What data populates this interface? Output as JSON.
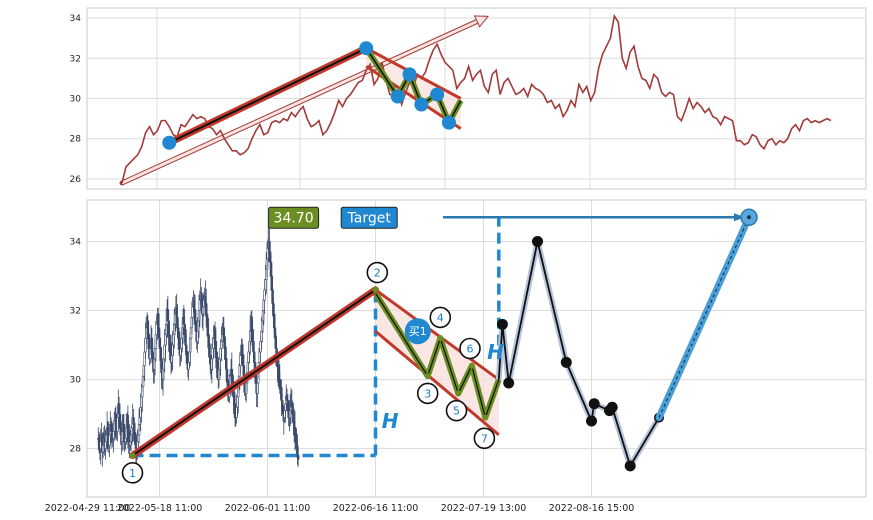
{
  "chart_data": [
    {
      "panel": "top",
      "type": "line",
      "ylim": [
        25.5,
        34.5
      ],
      "yticks": [
        26,
        28,
        30,
        32,
        34
      ],
      "grid": true,
      "price_series": [
        25.8,
        26.6,
        26.8,
        27.0,
        27.2,
        27.6,
        28.3,
        28.6,
        28.2,
        28.4,
        28.9,
        28.9,
        28.6,
        28.2,
        28.1,
        28.7,
        28.6,
        28.9,
        29.2,
        29.0,
        29.1,
        29.0,
        28.6,
        28.5,
        28.2,
        28.4,
        28.0,
        27.7,
        27.4,
        27.4,
        27.2,
        27.3,
        27.5,
        28.0,
        28.4,
        28.7,
        28.2,
        28.3,
        28.8,
        28.9,
        28.8,
        29.0,
        28.9,
        29.3,
        29.1,
        29.4,
        29.6,
        29.0,
        28.6,
        28.7,
        28.9,
        28.2,
        28.4,
        28.8,
        29.3,
        29.9,
        29.6,
        30.0,
        30.2,
        30.5,
        30.8,
        30.9,
        31.4,
        31.7,
        30.7,
        31.0,
        31.8,
        30.9,
        30.2,
        30.2,
        30.4,
        29.7,
        30.3,
        30.8,
        30.6,
        31.2,
        31.0,
        31.3,
        31.9,
        32.4,
        32.7,
        32.2,
        31.8,
        31.6,
        31.4,
        30.5,
        30.8,
        31.0,
        31.6,
        30.9,
        31.2,
        31.4,
        30.6,
        30.3,
        31.2,
        31.4,
        30.2,
        30.8,
        31.0,
        30.6,
        30.2,
        30.3,
        30.5,
        30.1,
        30.7,
        30.5,
        30.4,
        30.2,
        29.8,
        29.9,
        29.5,
        29.7,
        29.1,
        29.4,
        29.9,
        29.6,
        30.7,
        30.3,
        30.6,
        29.9,
        30.3,
        31.5,
        32.2,
        32.6,
        33.0,
        34.1,
        33.8,
        32.0,
        31.5,
        32.3,
        32.6,
        31.6,
        31.0,
        30.9,
        30.5,
        31.2,
        31.0,
        30.3,
        30.1,
        30.3,
        30.2,
        29.1,
        28.9,
        29.4,
        30.0,
        29.5,
        29.8,
        29.6,
        29.3,
        29.5,
        29.1,
        29.0,
        28.7,
        29.1,
        29.0,
        28.9,
        27.9,
        27.9,
        27.7,
        27.8,
        28.2,
        28.1,
        27.7,
        27.5,
        27.9,
        28.0,
        27.7,
        27.9,
        27.8,
        28.0,
        28.5,
        28.7,
        28.4,
        28.9,
        29.0,
        28.8,
        28.9,
        28.8,
        28.9,
        29.0,
        28.9
      ],
      "trend_line": {
        "from": [
          12,
          27.8
        ],
        "to": [
          62,
          32.5
        ]
      },
      "wedge_upper": {
        "from": [
          62,
          32.5
        ],
        "to": [
          86,
          30.0
        ]
      },
      "wedge_lower": {
        "from": [
          62,
          31.6
        ],
        "to": [
          86,
          28.5
        ]
      },
      "zigzag": [
        [
          62,
          32.5
        ],
        [
          70,
          30.1
        ],
        [
          73,
          31.2
        ],
        [
          76,
          29.7
        ],
        [
          80,
          30.2
        ],
        [
          83,
          28.8
        ],
        [
          86,
          29.9
        ]
      ],
      "pivots": [
        [
          12,
          27.8
        ],
        [
          62,
          32.5
        ],
        [
          70,
          30.1
        ],
        [
          73,
          31.2
        ],
        [
          76,
          29.7
        ],
        [
          80,
          30.2
        ],
        [
          83,
          28.8
        ]
      ],
      "projection_arrow": {
        "from": [
          0,
          25.8
        ],
        "to": [
          92,
          34.0
        ]
      }
    },
    {
      "panel": "bottom",
      "type": "candlestick",
      "ylim": [
        26.6,
        35.2
      ],
      "yticks": [
        28,
        30,
        32,
        34
      ],
      "grid": true,
      "x_tick_labels": [
        "2022-04-29 11:00",
        "2022-05-18 11:00",
        "2022-06-01 11:00",
        "2022-06-16 11:00",
        "2022-07-19 13:00",
        "2022-08-16 15:00"
      ],
      "x_tick_positions": [
        0,
        80,
        200,
        320,
        440,
        560
      ],
      "price_series": [
        28.3,
        28.1,
        28.0,
        28.4,
        28.2,
        27.9,
        28.1,
        28.3,
        28.0,
        28.2,
        28.4,
        28.6,
        28.3,
        28.1,
        28.4,
        28.7,
        28.5,
        28.4,
        28.3,
        28.5,
        28.8,
        29.0,
        28.7,
        28.5,
        28.9,
        29.3,
        29.0,
        28.6,
        28.4,
        28.2,
        28.5,
        28.7,
        28.4,
        28.2,
        28.3,
        28.6,
        28.8,
        28.5,
        28.3,
        28.1,
        28.2,
        28.4,
        28.6,
        28.9,
        28.7,
        28.4,
        28.3,
        28.1,
        28.0,
        28.2,
        28.4,
        28.7,
        28.9,
        29.2,
        29.5,
        29.8,
        30.1,
        30.4,
        30.8,
        31.2,
        31.5,
        31.7,
        31.3,
        30.9,
        30.6,
        30.9,
        31.2,
        30.8,
        30.5,
        30.3,
        30.6,
        30.9,
        31.3,
        31.6,
        31.9,
        31.5,
        31.2,
        30.9,
        30.6,
        30.2,
        30.0,
        30.3,
        30.6,
        31.0,
        31.3,
        31.6,
        32.0,
        31.7,
        31.3,
        31.0,
        30.8,
        30.5,
        30.7,
        31.0,
        31.3,
        31.6,
        31.9,
        32.1,
        31.8,
        31.5,
        31.2,
        30.9,
        30.7,
        30.9,
        31.2,
        31.5,
        31.8,
        31.6,
        31.3,
        31.0,
        30.8,
        30.5,
        30.3,
        30.5,
        30.8,
        31.2,
        31.5,
        31.8,
        32.1,
        32.3,
        32.0,
        31.7,
        31.4,
        31.1,
        31.4,
        31.7,
        32.0,
        32.3,
        32.5,
        32.2,
        31.9,
        32.1,
        32.3,
        32.4,
        32.2,
        31.9,
        31.6,
        31.3,
        31.0,
        30.7,
        30.5,
        30.3,
        30.6,
        30.9,
        31.2,
        31.4,
        31.1,
        30.8,
        30.5,
        30.2,
        30.0,
        30.3,
        30.6,
        30.9,
        31.1,
        31.3,
        31.5,
        31.2,
        30.9,
        30.6,
        30.3,
        30.0,
        29.7,
        29.5,
        29.8,
        30.1,
        30.3,
        30.0,
        29.7,
        29.5,
        29.3,
        29.1,
        28.9,
        29.2,
        29.5,
        29.8,
        30.1,
        30.4,
        30.7,
        31.0,
        30.7,
        30.4,
        30.1,
        29.8,
        29.6,
        29.9,
        30.2,
        30.5,
        30.8,
        31.1,
        31.4,
        31.7,
        31.4,
        31.1,
        30.8,
        30.5,
        30.2,
        29.9,
        29.6,
        29.9,
        30.2,
        30.5,
        30.8,
        31.1,
        31.4,
        31.7,
        32.0,
        32.3,
        32.6,
        32.9,
        33.2,
        33.5,
        33.8,
        34.0,
        33.7,
        33.4,
        33.0,
        32.6,
        32.2,
        31.9,
        31.5,
        31.2,
        30.9,
        30.6,
        30.4,
        30.2,
        30.0,
        29.8,
        29.6,
        29.4,
        29.2,
        29.0,
        28.9,
        29.1,
        29.3,
        29.5,
        29.4,
        29.2,
        29.0,
        28.9,
        29.1,
        29.3,
        29.2,
        29.0,
        28.8,
        28.6,
        28.4,
        28.2,
        28.0,
        27.8,
        27.7
      ],
      "candles_end_index": 235,
      "trend_line": {
        "from": [
          50,
          27.8
        ],
        "to": [
          320,
          32.6
        ]
      },
      "wedge_upper": {
        "from": [
          320,
          32.6
        ],
        "to": [
          457,
          30.0
        ]
      },
      "wedge_lower": {
        "from": [
          320,
          31.4
        ],
        "to": [
          457,
          28.4
        ]
      },
      "zigzag": [
        [
          320,
          32.5
        ],
        [
          378,
          30.1
        ],
        [
          392,
          31.2
        ],
        [
          412,
          29.6
        ],
        [
          427,
          30.4
        ],
        [
          442,
          28.9
        ],
        [
          457,
          30.0
        ]
      ],
      "wave_points": [
        {
          "label": "1",
          "x": 50,
          "y": 27.8,
          "lx": 50,
          "ly": 27.3
        },
        {
          "label": "2",
          "x": 320,
          "y": 32.6,
          "lx": 322,
          "ly": 33.1
        },
        {
          "label": "3",
          "x": 378,
          "y": 30.1,
          "lx": 378,
          "ly": 29.6
        },
        {
          "label": "4",
          "x": 392,
          "y": 31.2,
          "lx": 392,
          "ly": 31.8
        },
        {
          "label": "5",
          "x": 412,
          "y": 29.6,
          "lx": 410,
          "ly": 29.1
        },
        {
          "label": "6",
          "x": 427,
          "y": 30.4,
          "lx": 425,
          "ly": 30.9
        },
        {
          "label": "7",
          "x": 442,
          "y": 28.9,
          "lx": 441,
          "ly": 28.3
        }
      ],
      "buy_marker": {
        "label": "买1",
        "x": 367,
        "y": 31.4
      },
      "future_path": [
        [
          457,
          30.0
        ],
        [
          461,
          31.6
        ],
        [
          468,
          29.9
        ],
        [
          500,
          34.0
        ],
        [
          532,
          30.5
        ],
        [
          560,
          28.8
        ],
        [
          563,
          29.3
        ],
        [
          580,
          29.1
        ],
        [
          583,
          29.2
        ],
        [
          603,
          27.5
        ],
        [
          635,
          28.9
        ]
      ],
      "target_line": {
        "from": [
          635,
          28.9
        ],
        "to": [
          735,
          34.7
        ]
      },
      "target_price": "34.70",
      "target_label": "Target",
      "h_label": "H",
      "h_vertical_left": {
        "x": 320,
        "from": 27.8,
        "to": 32.6
      },
      "h_horizontal_left": {
        "y": 27.8,
        "from": 50,
        "to": 320
      },
      "h_vertical_right": {
        "x": 457,
        "from": 30.0,
        "to": 34.7
      },
      "target_arrow": {
        "y": 34.7,
        "from": 395,
        "to": 735
      }
    }
  ],
  "colors": {
    "price_line": "#a33a3a",
    "trend_red": "#c0392b",
    "trend_black": "#111111",
    "wedge_fill": "#f8ded8",
    "zigzag_green": "#6b8e23",
    "pivot_blue": "#1f88d0",
    "candle": "#3b4a6b",
    "future_fill": "#b8c4dc",
    "target_line": "#4a9fd9",
    "target_badge": "#1f88d0",
    "price_badge": "#6b8e23",
    "dashed": "#1f88d0"
  }
}
